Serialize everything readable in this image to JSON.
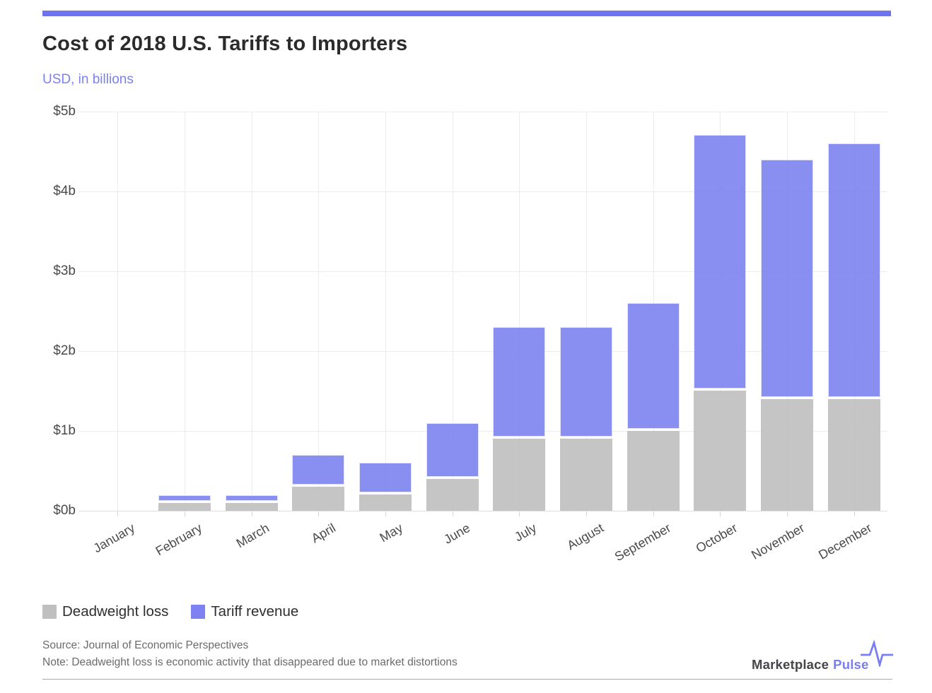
{
  "chart_data": {
    "type": "bar",
    "stacked": true,
    "title": "Cost of 2018 U.S. Tariffs to Importers",
    "subtitle": "USD, in billions",
    "categories": [
      "January",
      "February",
      "March",
      "April",
      "May",
      "June",
      "July",
      "August",
      "September",
      "October",
      "November",
      "December"
    ],
    "series": [
      {
        "name": "Deadweight loss",
        "color": "#bfbfbf",
        "values": [
          0,
          0.1,
          0.1,
          0.3,
          0.2,
          0.4,
          0.9,
          0.9,
          1.0,
          1.5,
          1.4,
          1.4
        ]
      },
      {
        "name": "Tariff revenue",
        "color": "#7d82f0",
        "values": [
          0,
          0.1,
          0.1,
          0.4,
          0.4,
          0.7,
          1.4,
          1.4,
          1.6,
          3.2,
          3.0,
          3.2
        ]
      }
    ],
    "stack_totals": [
      0,
      0.2,
      0.2,
      0.7,
      0.6,
      1.1,
      2.3,
      2.3,
      2.6,
      4.7,
      4.4,
      4.6
    ],
    "ylim": [
      0,
      5
    ],
    "ytick_labels": [
      "$0b",
      "$1b",
      "$2b",
      "$3b",
      "$4b",
      "$5b"
    ],
    "xlabel": "",
    "ylabel": "USD, in billions",
    "grid": true,
    "legend_position": "bottom-left"
  },
  "colors": {
    "accent_bar": "#6f74ee",
    "subtitle_text": "#7c81ee",
    "logo_accent": "#7a7ef5",
    "grid": "#ececec",
    "axis_text": "#4a4a4a"
  },
  "footer": {
    "source": "Source: Journal of Economic Perspectives",
    "note": "Note: Deadweight loss is economic activity that disappeared due to market distortions",
    "logo_brand": "Marketplace",
    "logo_brand_accent": "Pulse",
    "logo_icon": "pulse-heartbeat-icon"
  }
}
